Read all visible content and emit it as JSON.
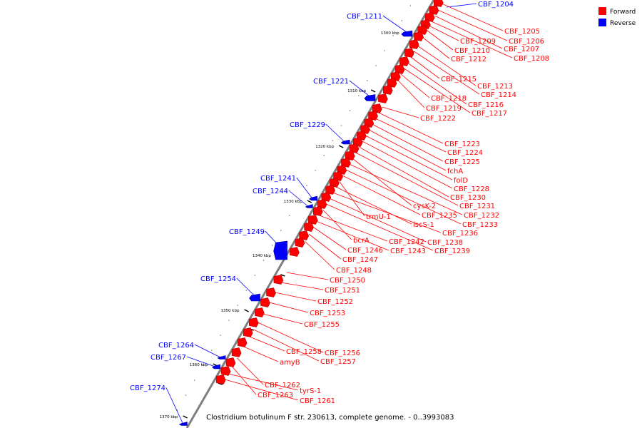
{
  "legend": {
    "forward_label": "Forward",
    "reverse_label": "Reverse",
    "forward_color": "#ff0000",
    "reverse_color": "#0000ff"
  },
  "caption": "Clostridium botulinum F str. 230613, complete genome. - 0..3993083",
  "colors": {
    "forward": "#ff0000",
    "reverse": "#0000ff",
    "backbone": "#7f7f7f"
  },
  "kbp_labels": [
    "1300 kbp",
    "1310 kbp",
    "1320 kbp",
    "1330 kbp",
    "1340 kbp",
    "1350 kbp",
    "1360 kbp",
    "1370 kbp"
  ],
  "reverse_genes": [
    "CBF_1204",
    "CBF_1211",
    "CBF_1221",
    "CBF_1229",
    "CBF_1241",
    "CBF_1244",
    "CBF_1249",
    "CBF_1254",
    "CBF_1264",
    "CBF_1267",
    "CBF_1274"
  ],
  "forward_genes": [
    "CBF_1205",
    "CBF_1206",
    "CBF_1207",
    "CBF_1208",
    "CBF_1209",
    "CBF_1210",
    "CBF_1212",
    "CBF_1213",
    "CBF_1214",
    "CBF_1215",
    "CBF_1216",
    "CBF_1217",
    "CBF_1218",
    "CBF_1219",
    "CBF_1222",
    "CBF_1223",
    "CBF_1224",
    "CBF_1225",
    "fchA",
    "folD",
    "CBF_1228",
    "CBF_1230",
    "CBF_1231",
    "cysK-2",
    "CBF_1232",
    "CBF_1233",
    "CBF_1235",
    "trmU-1",
    "iscS-1",
    "CBF_1236",
    "CBF_1238",
    "CBF_1239",
    "bcrA",
    "CBF_1242",
    "CBF_1243",
    "CBF_1246",
    "CBF_1247",
    "CBF_1248",
    "CBF_1250",
    "CBF_1251",
    "CBF_1252",
    "CBF_1253",
    "CBF_1255",
    "CBF_1256",
    "CBF_1257",
    "CBF_1258",
    "amyB",
    "CBF_1262",
    "CBF_1263",
    "tyrS-1",
    "CBF_1261"
  ]
}
